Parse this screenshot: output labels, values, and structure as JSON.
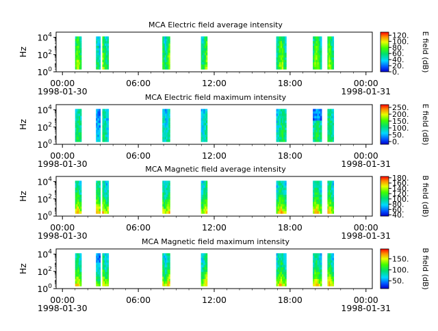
{
  "chart_data": [
    {
      "type": "heatmap",
      "title": "MCA  Electric field average intensity",
      "ylabel": "Hz",
      "colorbar_label": "E field (dB)",
      "colorbar_ticks": [
        "0.",
        "20.",
        "40.",
        "60.",
        "80.",
        "100.",
        "120."
      ],
      "colorbar_range": [
        0,
        130
      ],
      "y_scale": "log",
      "y_ticks": [
        "10^0",
        "10^2",
        "10^4"
      ],
      "segments": [
        [
          1.0,
          1.5
        ],
        [
          2.65,
          3.0
        ],
        [
          3.15,
          3.65
        ],
        [
          7.9,
          8.5
        ],
        [
          10.95,
          11.45
        ],
        [
          16.9,
          17.7
        ],
        [
          19.8,
          20.5
        ],
        [
          20.95,
          21.45
        ]
      ]
    },
    {
      "type": "heatmap",
      "title": "MCA  Electric field maximum intensity",
      "ylabel": "Hz",
      "colorbar_label": "E field (dB)",
      "colorbar_ticks": [
        "0.",
        "50.",
        "100.",
        "150.",
        "200.",
        "250."
      ],
      "colorbar_range": [
        -20,
        270
      ],
      "y_scale": "log",
      "y_ticks": [
        "10^0",
        "10^2",
        "10^4"
      ],
      "segments": [
        [
          1.0,
          1.5
        ],
        [
          2.65,
          3.0
        ],
        [
          3.15,
          3.65
        ],
        [
          7.9,
          8.5
        ],
        [
          10.95,
          11.45
        ],
        [
          16.9,
          17.7
        ],
        [
          19.8,
          20.5
        ],
        [
          20.95,
          21.45
        ]
      ]
    },
    {
      "type": "heatmap",
      "title": "MCA  Magnetic field average intensity",
      "ylabel": "Hz",
      "colorbar_label": "B field (dB)",
      "colorbar_ticks": [
        "40.",
        "60.",
        "80.",
        "100.",
        "120.",
        "140.",
        "160.",
        "180."
      ],
      "colorbar_range": [
        35,
        185
      ],
      "y_scale": "log",
      "y_ticks": [
        "10^0",
        "10^2",
        "10^4"
      ],
      "segments": [
        [
          1.0,
          1.5
        ],
        [
          2.65,
          3.0
        ],
        [
          3.15,
          3.65
        ],
        [
          7.9,
          8.5
        ],
        [
          10.95,
          11.45
        ],
        [
          16.9,
          17.7
        ],
        [
          19.8,
          20.5
        ],
        [
          20.95,
          21.45
        ]
      ]
    },
    {
      "type": "heatmap",
      "title": "MCA  Magnetic field maximum intensity",
      "ylabel": "Hz",
      "colorbar_label": "B field (dB)",
      "colorbar_ticks": [
        "50.",
        "100.",
        "150."
      ],
      "colorbar_range": [
        15,
        195
      ],
      "y_scale": "log",
      "y_ticks": [
        "10^0",
        "10^2",
        "10^4"
      ],
      "segments": [
        [
          1.0,
          1.5
        ],
        [
          2.65,
          3.0
        ],
        [
          3.15,
          3.65
        ],
        [
          7.9,
          8.5
        ],
        [
          10.95,
          11.45
        ],
        [
          16.9,
          17.7
        ],
        [
          19.8,
          20.5
        ],
        [
          20.95,
          21.45
        ]
      ]
    }
  ],
  "x_axis": {
    "range_hours": [
      -0.5,
      24.5
    ],
    "ticks": [
      {
        "hour": 0,
        "label": "00:00"
      },
      {
        "hour": 6,
        "label": "06:00"
      },
      {
        "hour": 12,
        "label": "12:00"
      },
      {
        "hour": 18,
        "label": "18:00"
      },
      {
        "hour": 24,
        "label": "00:00"
      }
    ],
    "date_labels": [
      {
        "hour": 0,
        "label": "1998-01-30"
      },
      {
        "hour": 24,
        "label": "1998-01-31"
      }
    ]
  }
}
